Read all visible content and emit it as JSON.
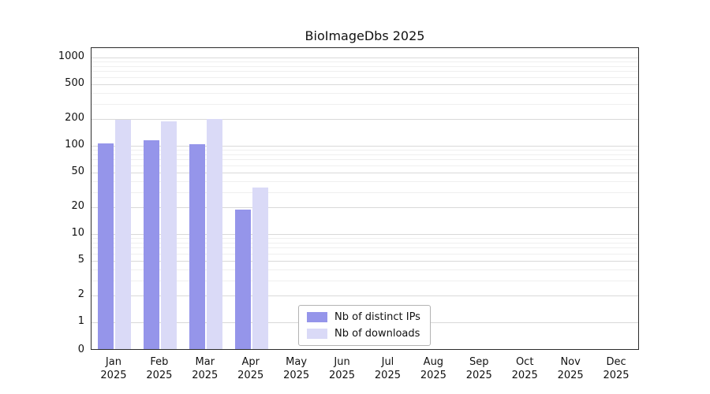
{
  "chart_data": {
    "type": "bar",
    "title": "BioImageDbs 2025",
    "year_label": "2025",
    "categories": [
      "Jan",
      "Feb",
      "Mar",
      "Apr",
      "May",
      "Jun",
      "Jul",
      "Aug",
      "Sep",
      "Oct",
      "Nov",
      "Dec"
    ],
    "series": [
      {
        "name": "Nb of distinct IPs",
        "color": "#9595ea",
        "values": [
          102,
          112,
          100,
          18,
          0,
          0,
          0,
          0,
          0,
          0,
          0,
          0
        ]
      },
      {
        "name": "Nb of downloads",
        "color": "#dadaf7",
        "values": [
          188,
          182,
          193,
          32,
          0,
          0,
          0,
          0,
          0,
          0,
          0,
          0
        ]
      }
    ],
    "y_ticks": [
      0,
      1,
      2,
      5,
      10,
      20,
      50,
      100,
      200,
      500,
      1000
    ],
    "y_scale": "symlog",
    "ylim": [
      0,
      1000
    ],
    "grid": "horizontal major+minor",
    "legend_position": "bottom-center-inside"
  }
}
